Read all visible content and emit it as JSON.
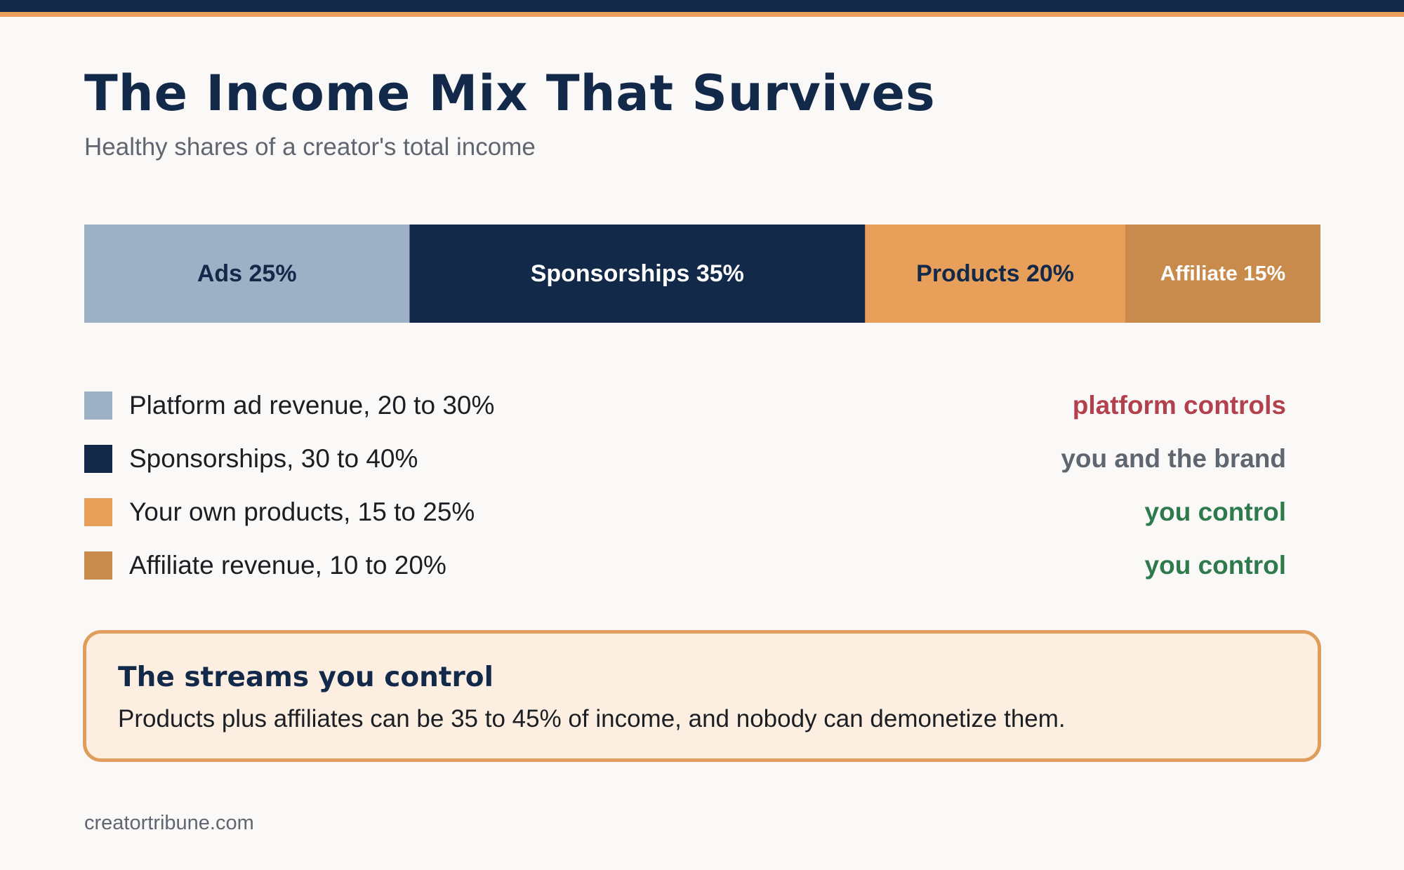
{
  "header": {
    "title": "The Income Mix That Survives",
    "subtitle": "Healthy shares of a creator's total income"
  },
  "chart_data": {
    "type": "bar",
    "orientation": "horizontal-stacked",
    "title": "The Income Mix That Survives",
    "subtitle": "Healthy shares of a creator's total income",
    "unit": "%",
    "segments": [
      {
        "name": "Ads",
        "value": 25,
        "label": "Ads 25%",
        "color": "#9eb0c6",
        "text_color": "#12294a"
      },
      {
        "name": "Sponsorships",
        "value": 35,
        "label": "Sponsorships 35%",
        "color": "#12294a",
        "text_color": "#ffffff"
      },
      {
        "name": "Products",
        "value": 20,
        "label": "Products 20%",
        "color": "#e79f5a",
        "text_color": "#12294a"
      },
      {
        "name": "Affiliate",
        "value": 15,
        "label": "Affiliate 15%",
        "color": "#c98b4c",
        "text_color": "#ffffff"
      }
    ]
  },
  "legend": {
    "items": [
      {
        "color": "#9eb0c6",
        "label": "Platform ad revenue, 20 to 30%",
        "control": "platform controls",
        "control_color": "#b3404d"
      },
      {
        "color": "#12294a",
        "label": "Sponsorships, 30 to 40%",
        "control": "you and the brand",
        "control_color": "#5f6670"
      },
      {
        "color": "#e79f5a",
        "label": "Your own products, 15 to 25%",
        "control": "you control",
        "control_color": "#2f7a4d"
      },
      {
        "color": "#c98b4c",
        "label": "Affiliate revenue, 10 to 20%",
        "control": "you control",
        "control_color": "#2f7a4d"
      }
    ]
  },
  "callout": {
    "title": "The streams you control",
    "body": "Products plus affiliates can be 35 to 45% of income, and nobody can demonetize them."
  },
  "footer": {
    "source": "creatortribune.com"
  }
}
